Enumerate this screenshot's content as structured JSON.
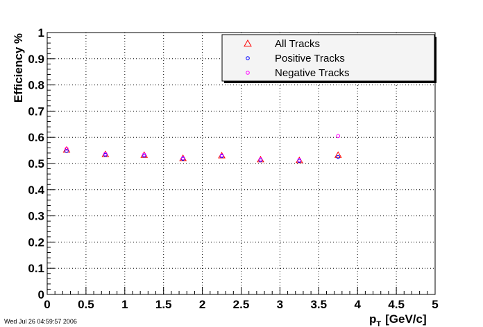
{
  "timestamp": "Wed Jul 26 04:59:57 2006",
  "chart_data": {
    "type": "scatter",
    "title": "",
    "xlabel_main": "p",
    "xlabel_sub": "T",
    "xlabel_unit": "[GeV/c]",
    "ylabel": "Efficiency %",
    "xlim": [
      0,
      5
    ],
    "ylim": [
      0,
      1
    ],
    "x_ticks": [
      "0",
      "0.5",
      "1",
      "1.5",
      "2",
      "2.5",
      "3",
      "3.5",
      "4",
      "4.5",
      "5"
    ],
    "y_ticks": [
      "0",
      "0.1",
      "0.2",
      "0.3",
      "0.4",
      "0.5",
      "0.6",
      "0.7",
      "0.8",
      "0.9",
      "1"
    ],
    "grid": true,
    "legend_position": "top-right",
    "series": [
      {
        "name": "All Tracks",
        "marker": "triangle",
        "color": "#ff0000",
        "x": [
          0.25,
          0.75,
          1.25,
          1.75,
          2.25,
          2.75,
          3.25,
          3.75
        ],
        "y": [
          0.552,
          0.535,
          0.532,
          0.52,
          0.53,
          0.515,
          0.512,
          0.532
        ]
      },
      {
        "name": "Positive Tracks",
        "marker": "circle",
        "color": "#0000ff",
        "x": [
          0.25,
          0.75,
          1.25,
          1.75,
          2.25,
          2.75,
          3.25,
          3.75
        ],
        "y": [
          0.548,
          0.533,
          0.53,
          0.518,
          0.528,
          0.512,
          0.51,
          0.525
        ]
      },
      {
        "name": "Negative Tracks",
        "marker": "circle",
        "color": "#ff00ff",
        "x": [
          0.25,
          0.75,
          1.25,
          1.75,
          2.25,
          2.75,
          3.25,
          3.75
        ],
        "y": [
          0.556,
          0.537,
          0.534,
          0.521,
          0.531,
          0.516,
          0.514,
          0.605
        ]
      }
    ]
  }
}
